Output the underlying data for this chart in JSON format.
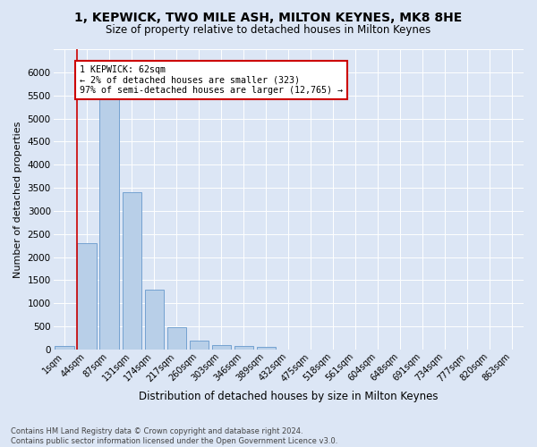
{
  "title_line1": "1, KEPWICK, TWO MILE ASH, MILTON KEYNES, MK8 8HE",
  "title_line2": "Size of property relative to detached houses in Milton Keynes",
  "xlabel": "Distribution of detached houses by size in Milton Keynes",
  "ylabel": "Number of detached properties",
  "bar_labels": [
    "1sqm",
    "44sqm",
    "87sqm",
    "131sqm",
    "174sqm",
    "217sqm",
    "260sqm",
    "303sqm",
    "346sqm",
    "389sqm",
    "432sqm",
    "475sqm",
    "518sqm",
    "561sqm",
    "604sqm",
    "648sqm",
    "691sqm",
    "734sqm",
    "777sqm",
    "820sqm",
    "863sqm"
  ],
  "bar_values": [
    75,
    2300,
    5450,
    3400,
    1300,
    490,
    200,
    100,
    70,
    50,
    0,
    0,
    0,
    0,
    0,
    0,
    0,
    0,
    0,
    0,
    0
  ],
  "bar_color": "#b8cfe8",
  "bar_edge_color": "#6699cc",
  "annotation_box_text": "1 KEPWICK: 62sqm\n← 2% of detached houses are smaller (323)\n97% of semi-detached houses are larger (12,765) →",
  "annotation_box_color": "#ffffff",
  "annotation_box_edgecolor": "#cc0000",
  "vline_color": "#cc0000",
  "footer_text": "Contains HM Land Registry data © Crown copyright and database right 2024.\nContains public sector information licensed under the Open Government Licence v3.0.",
  "bg_color": "#dce6f5",
  "plot_bg_color": "#dce6f5",
  "ylim": [
    0,
    6500
  ],
  "grid_color": "#ffffff"
}
